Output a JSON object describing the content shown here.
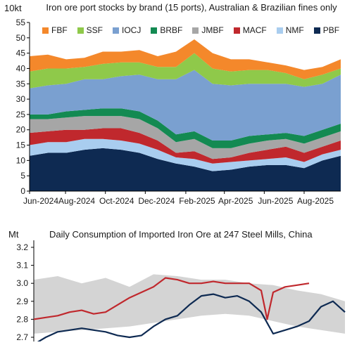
{
  "chart_data": [
    {
      "type": "area",
      "title": "Iron ore port stocks by brand (15 ports), Australian & Brazilian fines only",
      "ylabel": "10kt",
      "ylim": [
        0,
        55
      ],
      "yticks": [
        "0",
        "5",
        "10",
        "15",
        "20",
        "25",
        "30",
        "35",
        "40",
        "45",
        "50",
        "55"
      ],
      "xtick_labels": [
        "Jun-2024",
        "Aug-2024",
        "Oct-2024",
        "Dec-2024",
        "Feb-2025",
        "Apr-2025",
        "Jun-2025",
        "Aug-2025"
      ],
      "x": [
        "2024-06-07",
        "2024-07-05",
        "2024-08-02",
        "2024-08-30",
        "2024-09-27",
        "2024-10-25",
        "2024-11-22",
        "2024-12-20",
        "2025-01-17",
        "2025-02-14",
        "2025-03-14",
        "2025-04-11",
        "2025-05-09",
        "2025-06-06",
        "2025-07-04",
        "2025-08-01",
        "2025-08-29",
        "2025-09-26"
      ],
      "stacked": true,
      "legend_position": "top",
      "series": [
        {
          "name": "PBF",
          "color": "#0e2a52",
          "values": [
            11.5,
            12.5,
            12.5,
            13.5,
            14,
            13.5,
            12.5,
            10.5,
            9,
            8,
            6.5,
            7,
            8,
            8.5,
            8.5,
            7.5,
            10,
            11.5
          ]
        },
        {
          "name": "NMF",
          "color": "#a9cdef",
          "values": [
            3.5,
            3.5,
            3.5,
            3.5,
            3,
            3,
            3,
            3,
            2,
            2.5,
            2.5,
            2.5,
            2,
            2,
            2.5,
            2,
            2,
            2
          ]
        },
        {
          "name": "MACF",
          "color": "#c0282d",
          "values": [
            4,
            3.5,
            4,
            3,
            3.5,
            4,
            3.5,
            3,
            1.5,
            2.5,
            1.5,
            1.5,
            2.5,
            3,
            3.5,
            3,
            2.5,
            3
          ]
        },
        {
          "name": "JMBF",
          "color": "#a6a6a6",
          "values": [
            4.5,
            4,
            4,
            4.5,
            4,
            4,
            4.5,
            4,
            3.5,
            4,
            3.5,
            3,
            3,
            3,
            2.5,
            3,
            3,
            3
          ]
        },
        {
          "name": "BRBF",
          "color": "#138a52",
          "values": [
            1.5,
            1.5,
            2,
            2,
            2.5,
            2.5,
            2.5,
            2.5,
            2.5,
            2.5,
            2.5,
            2.5,
            2.5,
            2,
            2,
            2.5,
            2.5,
            2.5
          ]
        },
        {
          "name": "IOCJ",
          "color": "#7aa0d0",
          "values": [
            8.5,
            9.5,
            9,
            10,
            9.5,
            10.5,
            12,
            13.5,
            18,
            20,
            18.5,
            18,
            17,
            16.5,
            16,
            16,
            15,
            16
          ]
        },
        {
          "name": "SSF",
          "color": "#8fc94a",
          "values": [
            5.5,
            5.5,
            5,
            4,
            5,
            4.5,
            4,
            4,
            4,
            5.5,
            5,
            4.5,
            4.5,
            4.5,
            3.5,
            2.5,
            3,
            2
          ]
        },
        {
          "name": "FBF",
          "color": "#f4882b",
          "values": [
            5,
            4.5,
            3,
            3,
            4,
            3.5,
            4,
            3.5,
            5,
            4.5,
            5,
            4,
            3.5,
            2.5,
            2.5,
            3,
            2.5,
            3
          ]
        }
      ]
    },
    {
      "type": "line",
      "title": "Daily Consumption of Imported Iron Ore at 247 Steel Mills, China",
      "ylabel": "Mt",
      "ylim": [
        2.65,
        3.2
      ],
      "yticks": [
        "2.7",
        "2.8",
        "2.9",
        "3.0",
        "3.1",
        "3.2"
      ],
      "x_domain": [
        0,
        52
      ],
      "series": [
        {
          "color": "#0e2a52",
          "x": [
            0,
            2,
            4,
            6,
            8,
            10,
            12,
            14,
            16,
            18,
            20,
            22,
            24,
            26,
            28,
            30,
            32,
            34,
            36,
            38,
            40,
            42,
            44,
            46,
            48,
            50,
            52
          ],
          "values": [
            2.66,
            2.7,
            2.73,
            2.74,
            2.75,
            2.74,
            2.73,
            2.71,
            2.7,
            2.71,
            2.76,
            2.8,
            2.82,
            2.88,
            2.93,
            2.94,
            2.92,
            2.93,
            2.9,
            2.84,
            2.72,
            2.74,
            2.76,
            2.79,
            2.87,
            2.9,
            2.84
          ]
        },
        {
          "color": "#c0282d",
          "x": [
            0,
            2,
            4,
            6,
            8,
            10,
            12,
            14,
            16,
            18,
            20,
            22,
            24,
            26,
            28,
            30,
            32,
            34,
            36,
            38,
            39,
            40,
            42,
            44,
            46
          ],
          "values": [
            2.8,
            2.81,
            2.82,
            2.84,
            2.85,
            2.83,
            2.84,
            2.88,
            2.92,
            2.95,
            2.98,
            3.03,
            3.02,
            3.0,
            3.0,
            3.01,
            3.0,
            3.0,
            3.0,
            2.96,
            2.8,
            2.95,
            2.98,
            2.99,
            3.0
          ]
        },
        {
          "type": "band",
          "color": "#d4d4d4",
          "x": [
            0,
            4,
            8,
            12,
            16,
            20,
            24,
            28,
            32,
            36,
            40,
            44,
            48,
            52
          ],
          "lower": [
            2.72,
            2.73,
            2.74,
            2.75,
            2.76,
            2.78,
            2.8,
            2.82,
            2.83,
            2.82,
            2.79,
            2.76,
            2.74,
            2.72
          ],
          "upper": [
            3.02,
            3.04,
            3.0,
            3.03,
            2.98,
            3.05,
            3.04,
            3.02,
            3.02,
            3.0,
            2.99,
            2.96,
            2.94,
            2.9
          ]
        }
      ]
    }
  ]
}
